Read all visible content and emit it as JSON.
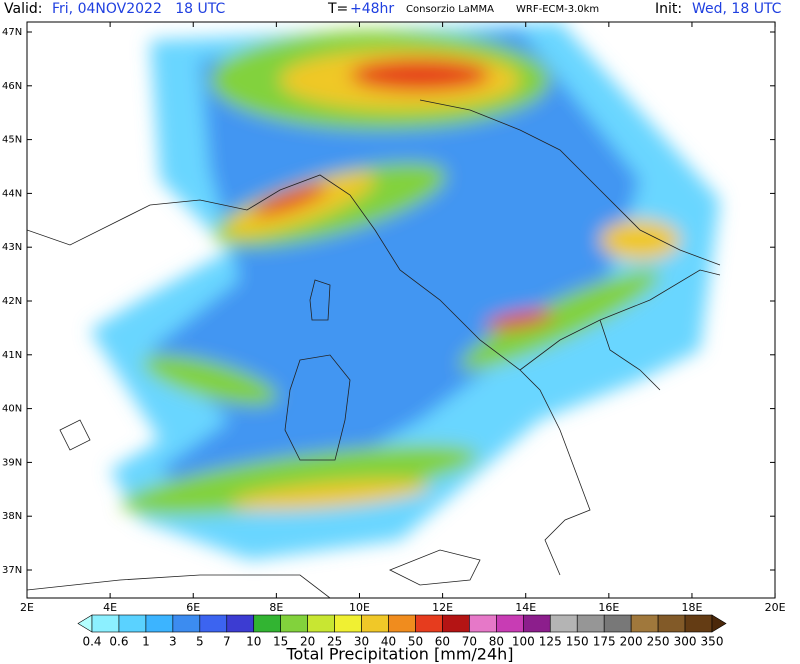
{
  "header": {
    "valid_label": "Valid:",
    "valid_time": "Fri, 04NOV2022   18 UTC",
    "forecast_label": "T=",
    "forecast_step": "+48hr",
    "producer": "Consorzio LaMMA",
    "model": "WRF-ECM-3.0km",
    "init_label": "Init:",
    "init_time": "Wed, 18 UTC"
  },
  "map": {
    "longitudes": [
      {
        "value": 2,
        "label": "2E"
      },
      {
        "value": 4,
        "label": "4E"
      },
      {
        "value": 6,
        "label": "6E"
      },
      {
        "value": 8,
        "label": "8E"
      },
      {
        "value": 10,
        "label": "10E"
      },
      {
        "value": 12,
        "label": "12E"
      },
      {
        "value": 14,
        "label": "14E"
      },
      {
        "value": 16,
        "label": "16E"
      },
      {
        "value": 18,
        "label": "18E"
      },
      {
        "value": 20,
        "label": "20E"
      }
    ],
    "latitudes": [
      {
        "value": 37,
        "label": "37N"
      },
      {
        "value": 38,
        "label": "38N"
      },
      {
        "value": 39,
        "label": "39N"
      },
      {
        "value": 40,
        "label": "40N"
      },
      {
        "value": 41,
        "label": "41N"
      },
      {
        "value": 42,
        "label": "42N"
      },
      {
        "value": 43,
        "label": "43N"
      },
      {
        "value": 44,
        "label": "44N"
      },
      {
        "value": 45,
        "label": "45N"
      },
      {
        "value": 46,
        "label": "46N"
      },
      {
        "value": 47,
        "label": "47N"
      }
    ]
  },
  "colorbar": {
    "title": "Total Precipitation [mm/24h]",
    "labels": [
      0.4,
      0.6,
      1,
      3,
      5,
      7,
      10,
      15,
      20,
      25,
      30,
      40,
      50,
      60,
      70,
      80,
      100,
      125,
      150,
      175,
      200,
      250,
      300,
      350
    ],
    "colors": [
      "#b4ffff",
      "#8cf0ff",
      "#5ad2ff",
      "#3cb4ff",
      "#3c8cf0",
      "#3c64f0",
      "#3c3cd2",
      "#32b432",
      "#82d23c",
      "#c8e632",
      "#f0f032",
      "#f0c828",
      "#f08c1e",
      "#e63c1e",
      "#b41414",
      "#e678c8",
      "#c83cb4",
      "#8c1e8c",
      "#b4b4b4",
      "#969696",
      "#787878",
      "#a0783c",
      "#825a28",
      "#643c14",
      "#4b280a"
    ]
  }
}
